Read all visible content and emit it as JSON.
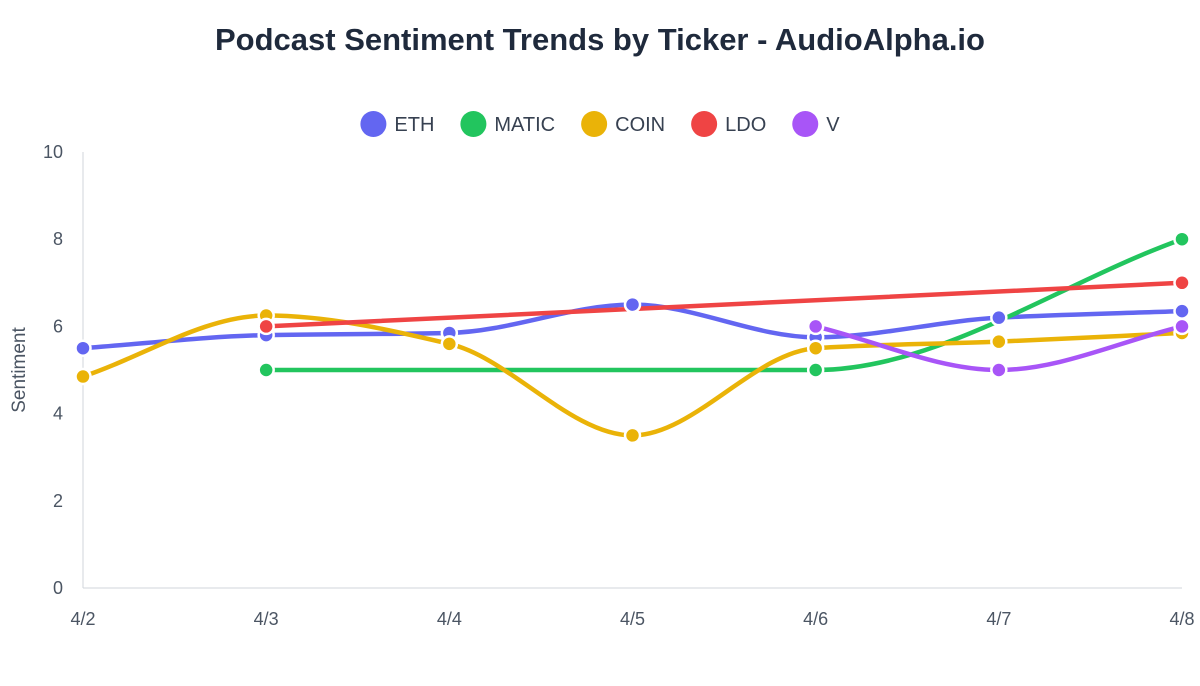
{
  "chart_data": {
    "type": "line",
    "title": "Podcast Sentiment Trends by Ticker - AudioAlpha.io",
    "xlabel": "",
    "ylabel": "Sentiment",
    "ylim": [
      0,
      10
    ],
    "yticks": [
      "0",
      "2",
      "4",
      "6",
      "8",
      "10"
    ],
    "categories": [
      "4/2",
      "4/3",
      "4/4",
      "4/5",
      "4/6",
      "4/7",
      "4/8"
    ],
    "legend_position": "top-center",
    "grid": false,
    "series": [
      {
        "name": "ETH",
        "color": "#6366f1",
        "values": [
          5.5,
          5.8,
          5.85,
          6.5,
          5.75,
          6.2,
          6.35
        ]
      },
      {
        "name": "MATIC",
        "color": "#22c55e",
        "values": [
          null,
          5.0,
          null,
          null,
          5.0,
          null,
          8.0
        ]
      },
      {
        "name": "COIN",
        "color": "#eab308",
        "values": [
          4.85,
          6.25,
          5.6,
          3.5,
          5.5,
          5.65,
          5.85
        ]
      },
      {
        "name": "LDO",
        "color": "#ef4444",
        "values": [
          null,
          6.0,
          null,
          null,
          null,
          null,
          7.0
        ]
      },
      {
        "name": "V",
        "color": "#a855f7",
        "values": [
          null,
          null,
          null,
          null,
          6.0,
          5.0,
          6.0
        ]
      }
    ]
  }
}
